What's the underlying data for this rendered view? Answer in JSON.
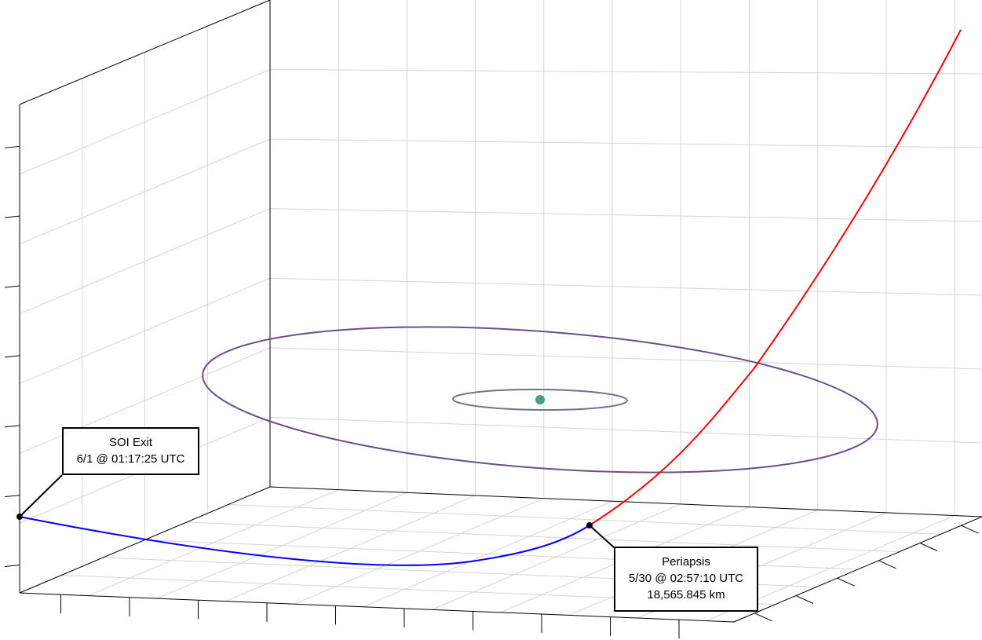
{
  "colors": {
    "grid": "#d4d4d4",
    "frame": "#000000",
    "outbound_trajectory": "#ff0000",
    "inbound_trajectory": "#0000ff",
    "outer_orbit": "#6b4e8e",
    "inner_orbit": "#6b7590",
    "central_body": "#4e9a8a",
    "callout_border": "#000000"
  },
  "annotations": {
    "soi_exit": {
      "title": "SOI Exit",
      "time": "6/1 @ 01:17:25 UTC"
    },
    "periapsis": {
      "title": "Periapsis",
      "time": "5/30 @ 02:57:10 UTC",
      "altitude": "18,565.845 km"
    }
  }
}
